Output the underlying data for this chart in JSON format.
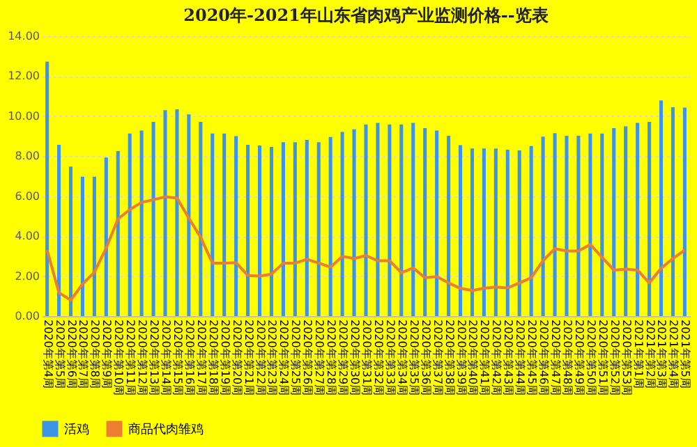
{
  "chart_data": {
    "type": "bar",
    "title": "2020年-2021年山东省肉鸡产业监测价格--览表",
    "categories": [
      "2020年第4周",
      "2020年第5周",
      "2020年第6周",
      "2020年第7周",
      "2020年第8周",
      "2020年第9周",
      "2020年第10周",
      "2020年第11周",
      "2020年第12周",
      "2020年第13周",
      "2020年第14周",
      "2020年第15周",
      "2020年第16周",
      "2020年第17周",
      "2020年第18周",
      "2020年第19周",
      "2020年第20周",
      "2020年第21周",
      "2020年第22周",
      "2020年第23周",
      "2020年第24周",
      "2020年第25周",
      "2020年第26周",
      "2020年第27周",
      "2020年第28周",
      "2020年第29周",
      "2020年第30周",
      "2020年第31周",
      "2020年第32周",
      "2020年第33周",
      "2020年第34周",
      "2020年第35周",
      "2020年第36周",
      "2020年第37周",
      "2020年第38周",
      "2020年第39周",
      "2020年第40周",
      "2020年第41周",
      "2020年第42周",
      "2020年第43周",
      "2020年第44周",
      "2020年第45周",
      "2020年第46周",
      "2020年第47周",
      "2020年第48周",
      "2020年第49周",
      "2020年第50周",
      "2020年第51周",
      "2020年第52周",
      "2020年第53周",
      "2021年第1周",
      "2021年第2周",
      "2021年第3周",
      "2021年第4周",
      "2021年第5周"
    ],
    "series": [
      {
        "name": "活鸡",
        "color": "#3d93e8",
        "values": [
          12.73,
          8.57,
          7.48,
          6.97,
          6.97,
          7.93,
          8.25,
          9.13,
          9.28,
          9.72,
          10.3,
          10.34,
          10.09,
          9.72,
          9.13,
          9.13,
          9.0,
          8.57,
          8.53,
          8.46,
          8.7,
          8.7,
          8.81,
          8.7,
          8.96,
          9.21,
          9.34,
          9.59,
          9.66,
          9.59,
          9.59,
          9.66,
          9.4,
          9.28,
          9.02,
          8.55,
          8.38,
          8.38,
          8.38,
          8.32,
          8.29,
          8.51,
          8.98,
          9.15,
          9.02,
          9.02,
          9.13,
          9.13,
          9.4,
          9.49,
          9.66,
          9.72,
          10.79,
          10.45,
          10.43
        ]
      },
      {
        "name": "商品代肉雏鸡",
        "type": "line",
        "color": "#ed7d31",
        "values": [
          3.3,
          1.17,
          0.8,
          1.6,
          2.2,
          3.41,
          4.86,
          5.33,
          5.69,
          5.82,
          5.97,
          5.9,
          4.9,
          3.94,
          2.65,
          2.65,
          2.67,
          2.03,
          2.0,
          2.1,
          2.65,
          2.65,
          2.84,
          2.65,
          2.45,
          2.99,
          2.88,
          3.03,
          2.77,
          2.77,
          2.17,
          2.41,
          1.92,
          1.98,
          1.66,
          1.39,
          1.28,
          1.39,
          1.45,
          1.41,
          1.66,
          1.92,
          2.77,
          3.37,
          3.26,
          3.26,
          3.58,
          2.94,
          2.3,
          2.35,
          2.3,
          1.66,
          2.39,
          2.88,
          3.3
        ]
      }
    ],
    "ylim": [
      0,
      14
    ],
    "yticks": [
      {
        "value": 0,
        "label": "0.00"
      },
      {
        "value": 2,
        "label": "2.00"
      },
      {
        "value": 4,
        "label": "4.00"
      },
      {
        "value": 6,
        "label": "6.00"
      },
      {
        "value": 8,
        "label": "8.00"
      },
      {
        "value": 10,
        "label": "10.00"
      },
      {
        "value": 12,
        "label": "12.00"
      },
      {
        "value": 14,
        "label": "14.00"
      }
    ],
    "grid": "y",
    "legend": "bottom",
    "marker": "none",
    "line_style": "solid"
  }
}
